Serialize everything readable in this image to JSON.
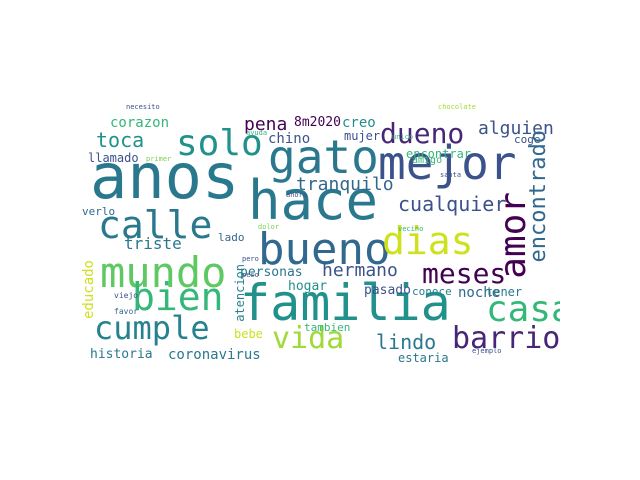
{
  "wordcloud": {
    "colors": {
      "c1": "#2a788e",
      "c2": "#21918c",
      "c3": "#440154",
      "c4": "#3b528b",
      "c5": "#5ec962",
      "c6": "#cde11d",
      "c7": "#35b779",
      "c8": "#31688e",
      "c9": "#482677",
      "c10": "#7ad151",
      "c11": "#a0da39",
      "c12": "#fde725",
      "c13": "#26828e",
      "c14": "#414487"
    },
    "words": [
      "anos",
      "hace",
      "gato",
      "mejor",
      "familia",
      "bueno",
      "mundo",
      "calle",
      "solo",
      "dias",
      "amor",
      "bien",
      "casa",
      "cumple",
      "meses",
      "dueno",
      "barrio",
      "vida",
      "cualquier",
      "alguien",
      "tranquilo",
      "encontrado",
      "hermano",
      "triste",
      "toca",
      "lindo",
      "corazon",
      "pena",
      "educado",
      "8m2020",
      "creo",
      "mujer",
      "coronavirus",
      "historia",
      "noche",
      "personas",
      "llamado",
      "chino",
      "estaria",
      "tener",
      "pasado",
      "hogar",
      "bebe",
      "tambien",
      "encontrar",
      "coge",
      "atencion",
      "verlo",
      "lado",
      "amigo",
      "conoce",
      "necesito",
      "primer",
      "viejo",
      "favor",
      "ayuda",
      "santa",
      "chocolate",
      "ejemplo",
      "ahora",
      "unico",
      "peso",
      "pero",
      "dolor",
      "vecino"
    ]
  }
}
